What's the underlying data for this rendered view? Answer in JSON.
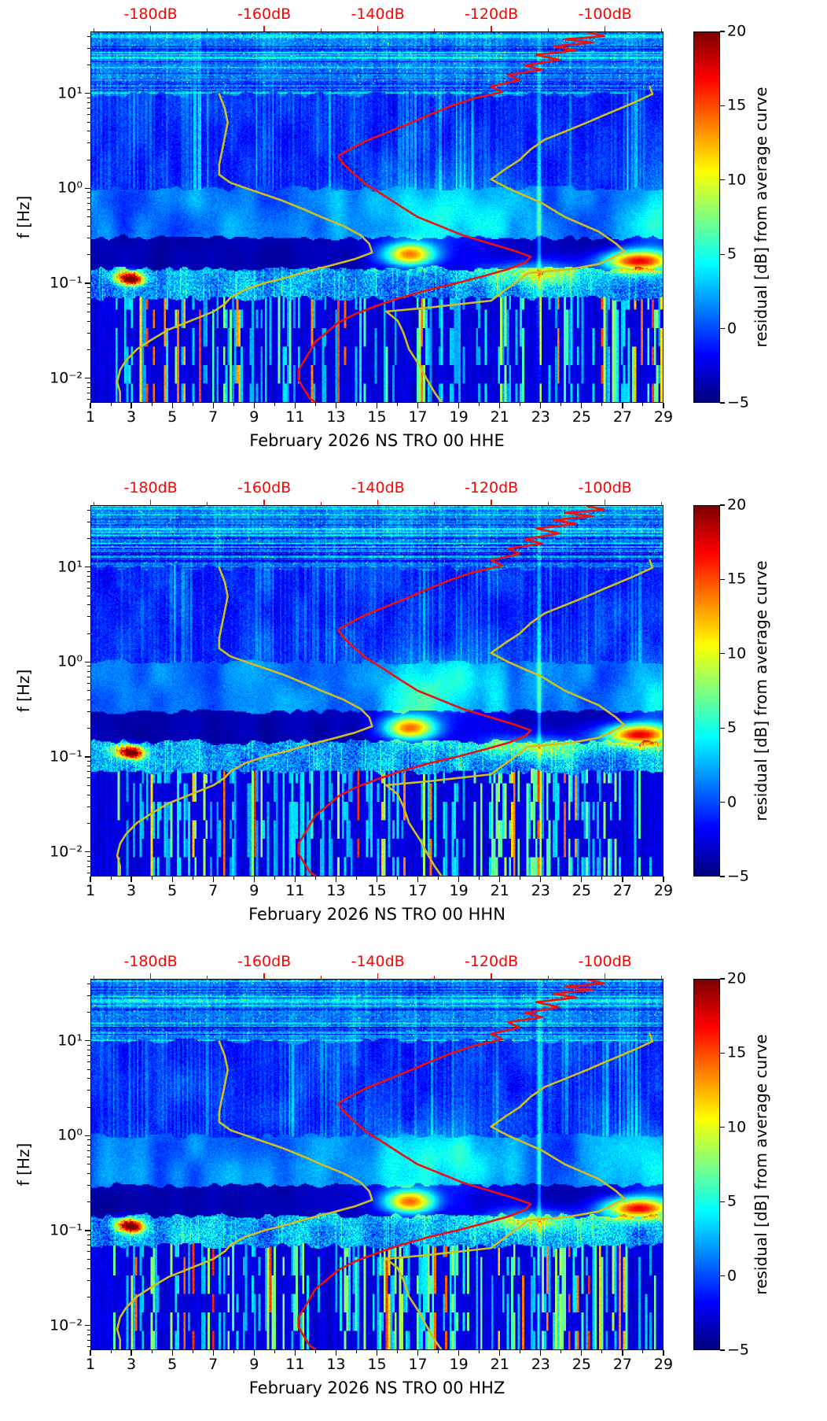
{
  "chart_data": {
    "type": "heatmap",
    "colormap": "jet",
    "value_range": [
      -5,
      20
    ],
    "x_axis": {
      "range_days": [
        1,
        29
      ],
      "tick_values": [
        1,
        3,
        5,
        7,
        9,
        11,
        13,
        15,
        17,
        19,
        21,
        23,
        25,
        27,
        29
      ],
      "tick_labels": [
        "1",
        "3",
        "5",
        "7",
        "9",
        "11",
        "13",
        "15",
        "17",
        "19",
        "21",
        "23",
        "25",
        "27",
        "29"
      ],
      "minor_tick_values": [
        2,
        4,
        6,
        8,
        10,
        12,
        14,
        16,
        18,
        20,
        22,
        24,
        26,
        28
      ]
    },
    "y_axis": {
      "label": "f [Hz]",
      "scale": "log",
      "range_hz": [
        0.0055,
        45
      ],
      "tick_values": [
        0.01,
        0.1,
        1,
        10
      ],
      "tick_labels": [
        "10⁻²",
        "10⁻¹",
        "10⁰",
        "10¹"
      ]
    },
    "top_axis": {
      "unit": "dB",
      "color": "#ff0000",
      "range_db": [
        -190.6,
        -89.7
      ],
      "tick_values": [
        -180,
        -160,
        -140,
        -120,
        -100
      ],
      "tick_labels": [
        "-180dB",
        "-160dB",
        "-140dB",
        "-120dB",
        "-100dB"
      ]
    },
    "colorbar": {
      "label": "residual [dB] from average curve",
      "value_range": [
        -5,
        20
      ],
      "tick_values": [
        20,
        15,
        10,
        5,
        0,
        -5
      ],
      "tick_labels": [
        "20",
        "15",
        "10",
        "5",
        "0",
        "−5"
      ]
    },
    "panels": [
      {
        "channel": "HHE",
        "title": "February 2026 NS TRO 00 HHE"
      },
      {
        "channel": "HHN",
        "title": "February 2026 NS TRO 00 HHN"
      },
      {
        "channel": "HHZ",
        "title": "February 2026 NS TRO 00 HHZ"
      }
    ],
    "curves": {
      "psd_red": {
        "color": "#ee1010",
        "points_hz_db": [
          [
            45,
            -103
          ],
          [
            41,
            -100
          ],
          [
            38,
            -107
          ],
          [
            35,
            -102
          ],
          [
            32,
            -109
          ],
          [
            29,
            -105
          ],
          [
            26,
            -112
          ],
          [
            23,
            -108
          ],
          [
            20,
            -114
          ],
          [
            18,
            -111
          ],
          [
            16,
            -117
          ],
          [
            14,
            -115
          ],
          [
            12,
            -120
          ],
          [
            10.5,
            -118
          ],
          [
            9,
            -123
          ],
          [
            7.5,
            -127
          ],
          [
            6,
            -131
          ],
          [
            5,
            -134
          ],
          [
            4,
            -138
          ],
          [
            3.2,
            -142
          ],
          [
            2.6,
            -145
          ],
          [
            2.2,
            -147
          ],
          [
            1.8,
            -146
          ],
          [
            1.4,
            -144
          ],
          [
            1.1,
            -142
          ],
          [
            0.85,
            -139
          ],
          [
            0.65,
            -136
          ],
          [
            0.5,
            -133
          ],
          [
            0.4,
            -129
          ],
          [
            0.32,
            -125
          ],
          [
            0.26,
            -120
          ],
          [
            0.22,
            -116
          ],
          [
            0.19,
            -113
          ],
          [
            0.165,
            -114
          ],
          [
            0.14,
            -117
          ],
          [
            0.12,
            -121
          ],
          [
            0.1,
            -126
          ],
          [
            0.085,
            -131
          ],
          [
            0.07,
            -136
          ],
          [
            0.058,
            -140
          ],
          [
            0.047,
            -144
          ],
          [
            0.038,
            -147
          ],
          [
            0.03,
            -149
          ],
          [
            0.024,
            -151
          ],
          [
            0.019,
            -152
          ],
          [
            0.015,
            -153
          ],
          [
            0.012,
            -154
          ],
          [
            0.0095,
            -154
          ],
          [
            0.0075,
            -153
          ],
          [
            0.006,
            -152
          ],
          [
            0.0055,
            -151
          ]
        ]
      },
      "yellow_low": {
        "color": "#d0be22",
        "points_hz_db": [
          [
            10,
            -168
          ],
          [
            7,
            -167
          ],
          [
            5,
            -166.5
          ],
          [
            3.5,
            -167
          ],
          [
            2.5,
            -167.5
          ],
          [
            1.8,
            -168
          ],
          [
            1.4,
            -168
          ],
          [
            1.15,
            -166
          ],
          [
            0.95,
            -162
          ],
          [
            0.75,
            -157
          ],
          [
            0.6,
            -153
          ],
          [
            0.5,
            -150
          ],
          [
            0.4,
            -146
          ],
          [
            0.32,
            -143
          ],
          [
            0.26,
            -141.5
          ],
          [
            0.21,
            -141
          ],
          [
            0.18,
            -144
          ],
          [
            0.155,
            -148
          ],
          [
            0.135,
            -152
          ],
          [
            0.115,
            -156
          ],
          [
            0.1,
            -160
          ],
          [
            0.085,
            -163.5
          ],
          [
            0.07,
            -166
          ],
          [
            0.06,
            -167
          ],
          [
            0.05,
            -169
          ],
          [
            0.04,
            -173
          ],
          [
            0.032,
            -177
          ],
          [
            0.025,
            -180
          ],
          [
            0.02,
            -182.5
          ],
          [
            0.015,
            -184.5
          ],
          [
            0.012,
            -185.5
          ],
          [
            0.009,
            -186
          ],
          [
            0.007,
            -185.5
          ],
          [
            0.0055,
            -185.5
          ]
        ]
      },
      "yellow_high": {
        "color": "#d0be22",
        "points_hz_db": [
          [
            12,
            -92
          ],
          [
            10,
            -91.5
          ],
          [
            8,
            -95
          ],
          [
            6,
            -100
          ],
          [
            5,
            -103
          ],
          [
            4,
            -107
          ],
          [
            3.3,
            -110.5
          ],
          [
            2.6,
            -113
          ],
          [
            2,
            -115
          ],
          [
            1.6,
            -117.5
          ],
          [
            1.25,
            -120
          ],
          [
            1,
            -116.9
          ],
          [
            0.7,
            -111
          ],
          [
            0.5,
            -107
          ],
          [
            0.35,
            -101
          ],
          [
            0.263,
            -98
          ],
          [
            0.217,
            -96.5
          ],
          [
            0.18,
            -99
          ],
          [
            0.159,
            -101
          ],
          [
            0.14,
            -106
          ],
          [
            0.127,
            -113.6
          ],
          [
            0.11,
            -114.8
          ],
          [
            0.1,
            -115.8
          ],
          [
            0.08,
            -118
          ],
          [
            0.065,
            -120
          ],
          [
            0.055,
            -131
          ],
          [
            0.05,
            -138.5
          ],
          [
            0.04,
            -136.5
          ],
          [
            0.03,
            -135.5
          ],
          [
            0.02,
            -134.5
          ],
          [
            0.013,
            -132.5
          ],
          [
            0.01,
            -131.5
          ],
          [
            0.007,
            -130
          ],
          [
            0.0055,
            -128.8
          ]
        ]
      }
    },
    "notable_features": [
      {
        "day": 16.6,
        "freq_hz": 0.2,
        "sigma_days": 0.9,
        "sigma_decades": 0.09,
        "amplitude_db": 17
      },
      {
        "day": 27.8,
        "freq_hz": 0.17,
        "sigma_days": 1.2,
        "sigma_decades": 0.08,
        "amplitude_db": 20
      },
      {
        "day": 2.8,
        "freq_hz": 0.115,
        "sigma_days": 0.5,
        "sigma_decades": 0.05,
        "amplitude_db": 15
      },
      {
        "day": 3.1,
        "freq_hz": 0.105,
        "sigma_days": 0.35,
        "sigma_decades": 0.04,
        "amplitude_db": 10
      },
      {
        "day": 22.6,
        "freq_hz": 0.13,
        "sigma_days": 1.8,
        "sigma_decades": 0.09,
        "amplitude_db": 7
      },
      {
        "day": 18.0,
        "freq_hz": 0.5,
        "sigma_days": 2.6,
        "sigma_decades": 0.27,
        "amplitude_db": 4
      },
      {
        "day": 28.6,
        "freq_hz": 0.45,
        "sigma_days": 1.1,
        "sigma_decades": 0.3,
        "amplitude_db": 4
      },
      {
        "day": 22.95,
        "freq_hz": 1.0,
        "sigma_days": 0.07,
        "sigma_decades": 1.1,
        "amplitude_db": 6
      }
    ]
  }
}
